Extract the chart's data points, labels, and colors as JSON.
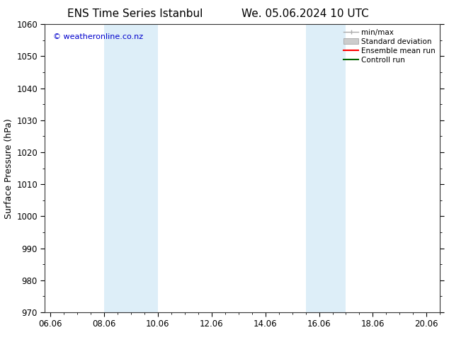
{
  "title_left": "ENS Time Series Istanbul",
  "title_right": "We. 05.06.2024 10 UTC",
  "ylabel": "Surface Pressure (hPa)",
  "xlim": [
    5.8,
    20.5
  ],
  "ylim": [
    970,
    1060
  ],
  "yticks": [
    970,
    980,
    990,
    1000,
    1010,
    1020,
    1030,
    1040,
    1050,
    1060
  ],
  "xtick_labels": [
    "06.06",
    "08.06",
    "10.06",
    "12.06",
    "14.06",
    "16.06",
    "18.06",
    "20.06"
  ],
  "xtick_positions": [
    6.0,
    8.0,
    10.0,
    12.0,
    14.0,
    16.0,
    18.0,
    20.0
  ],
  "shaded_bands": [
    {
      "x_start": 8.0,
      "x_end": 10.0
    },
    {
      "x_start": 15.5,
      "x_end": 17.0
    }
  ],
  "band_color": "#ddeef8",
  "copyright_text": "© weatheronline.co.nz",
  "copyright_color": "#0000cc",
  "background_color": "#ffffff",
  "title_fontsize": 11,
  "tick_fontsize": 8.5,
  "ylabel_fontsize": 9
}
